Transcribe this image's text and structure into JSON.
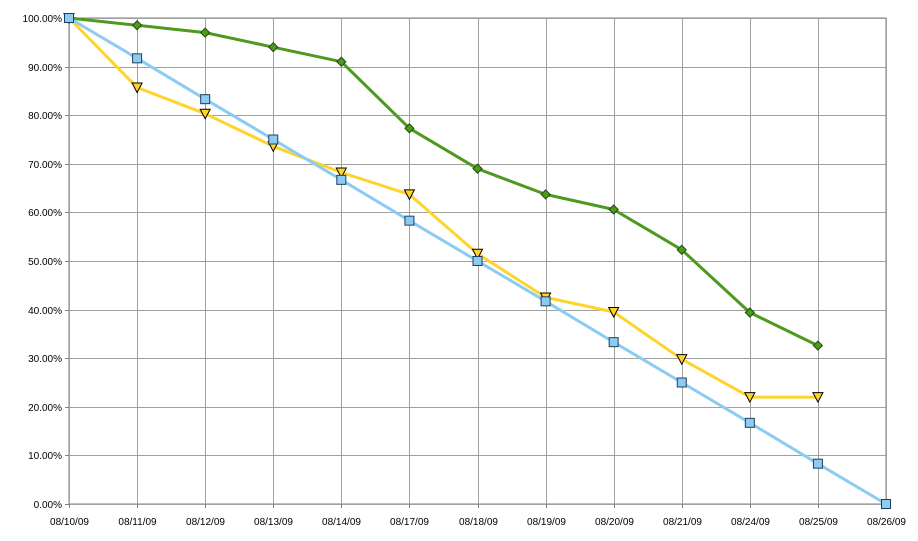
{
  "chart_data": {
    "type": "line",
    "categories": [
      "08/10/09",
      "08/11/09",
      "08/12/09",
      "08/13/09",
      "08/14/09",
      "08/17/09",
      "08/18/09",
      "08/19/09",
      "08/20/09",
      "08/21/09",
      "08/24/09",
      "08/25/09",
      "08/26/09"
    ],
    "ylim": [
      0,
      100
    ],
    "ytick_step": 10,
    "y_format": "percent_2dp",
    "grid": true,
    "legend": "none",
    "series": [
      {
        "marker": "diamond",
        "color": "#4E9A1F",
        "marker_fill": "#4E9A1F",
        "values": [
          100,
          98.5,
          97,
          94,
          91,
          77.3,
          69,
          63.7,
          60.6,
          52.3,
          39.4,
          32.6,
          null
        ]
      },
      {
        "marker": "triangle-down",
        "color": "#FFD42A",
        "marker_fill": "#FFD42A",
        "values": [
          100,
          85.7,
          80.3,
          73.6,
          68.2,
          63.7,
          51.5,
          42.5,
          39.5,
          29.8,
          22,
          22,
          null
        ]
      },
      {
        "marker": "square",
        "color": "#8CCBF2",
        "marker_fill": "#8CCBF2",
        "values": [
          100,
          91.7,
          83.3,
          75,
          66.7,
          58.3,
          50,
          41.7,
          33.3,
          25,
          16.7,
          8.3,
          0
        ]
      }
    ]
  }
}
